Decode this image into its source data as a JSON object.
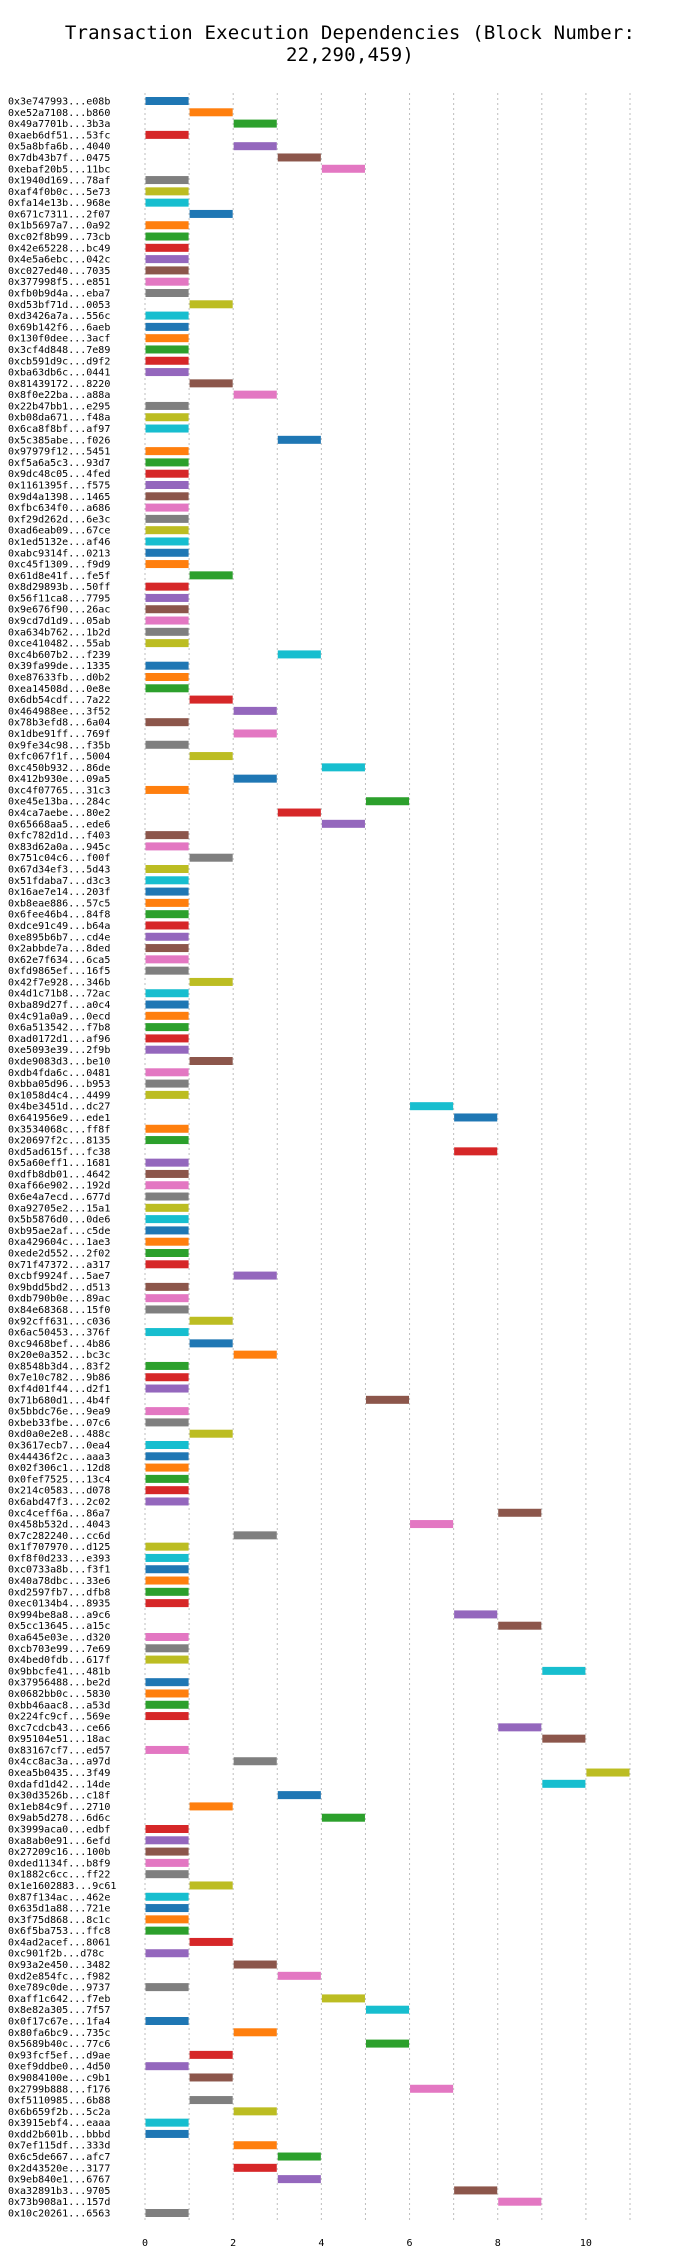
{
  "chart_data": {
    "type": "bar",
    "orientation": "horizontal-timeline",
    "title": "Transaction Execution Dependencies (Block Number: 22,290,459)",
    "xlabel": "",
    "ylabel": "",
    "xlim": [
      -0.5,
      11.5
    ],
    "xticks": [
      0,
      2,
      4,
      6,
      8,
      10
    ],
    "grid": "vertical-dotted",
    "colors": [
      "#1f77b4",
      "#ff7f0e",
      "#2ca02c",
      "#d62728",
      "#9467bd",
      "#8c564b",
      "#e377c2",
      "#7f7f7f",
      "#bcbd22",
      "#17becf"
    ],
    "transactions": [
      {
        "label": "0x3e747993...e08b",
        "start": 0,
        "end": 1
      },
      {
        "label": "0xe52a7108...b860",
        "start": 1,
        "end": 2
      },
      {
        "label": "0x49a7701b...3b3a",
        "start": 2,
        "end": 3
      },
      {
        "label": "0xaeb6df51...53fc",
        "start": 0,
        "end": 1
      },
      {
        "label": "0x5a8bfa6b...4040",
        "start": 2,
        "end": 3
      },
      {
        "label": "0x7db43b7f...0475",
        "start": 3,
        "end": 4
      },
      {
        "label": "0xebaf20b5...11bc",
        "start": 4,
        "end": 5
      },
      {
        "label": "0x1940d169...78af",
        "start": 0,
        "end": 1
      },
      {
        "label": "0xaf4f0b0c...5e73",
        "start": 0,
        "end": 1
      },
      {
        "label": "0xfa14e13b...968e",
        "start": 0,
        "end": 1
      },
      {
        "label": "0x671c7311...2f07",
        "start": 1,
        "end": 2
      },
      {
        "label": "0x1b5697a7...0a92",
        "start": 0,
        "end": 1
      },
      {
        "label": "0xc02f8b99...73cb",
        "start": 0,
        "end": 1
      },
      {
        "label": "0x42e65228...bc49",
        "start": 0,
        "end": 1
      },
      {
        "label": "0x4e5a6ebc...042c",
        "start": 0,
        "end": 1
      },
      {
        "label": "0xc027ed40...7035",
        "start": 0,
        "end": 1
      },
      {
        "label": "0x377998f5...e851",
        "start": 0,
        "end": 1
      },
      {
        "label": "0xfb0b9d4a...eba7",
        "start": 0,
        "end": 1
      },
      {
        "label": "0xd53bf71d...0053",
        "start": 1,
        "end": 2
      },
      {
        "label": "0xd3426a7a...556c",
        "start": 0,
        "end": 1
      },
      {
        "label": "0x69b142f6...6aeb",
        "start": 0,
        "end": 1
      },
      {
        "label": "0x130f0dee...3acf",
        "start": 0,
        "end": 1
      },
      {
        "label": "0x3cf4d848...7e89",
        "start": 0,
        "end": 1
      },
      {
        "label": "0xcb591d9c...d9f2",
        "start": 0,
        "end": 1
      },
      {
        "label": "0xba63db6c...0441",
        "start": 0,
        "end": 1
      },
      {
        "label": "0x81439172...8220",
        "start": 1,
        "end": 2
      },
      {
        "label": "0x8f0e22ba...a88a",
        "start": 2,
        "end": 3
      },
      {
        "label": "0x22b47bb1...e295",
        "start": 0,
        "end": 1
      },
      {
        "label": "0xb08da671...f48a",
        "start": 0,
        "end": 1
      },
      {
        "label": "0x6ca8f8bf...af97",
        "start": 0,
        "end": 1
      },
      {
        "label": "0x5c385abe...f026",
        "start": 3,
        "end": 4
      },
      {
        "label": "0x97979f12...5451",
        "start": 0,
        "end": 1
      },
      {
        "label": "0xf5a6a5c3...93d7",
        "start": 0,
        "end": 1
      },
      {
        "label": "0x9dc48c05...4fed",
        "start": 0,
        "end": 1
      },
      {
        "label": "0x1161395f...f575",
        "start": 0,
        "end": 1
      },
      {
        "label": "0x9d4a1398...1465",
        "start": 0,
        "end": 1
      },
      {
        "label": "0xfbc634f0...a686",
        "start": 0,
        "end": 1
      },
      {
        "label": "0xf29d262d...6e3c",
        "start": 0,
        "end": 1
      },
      {
        "label": "0xad6eab09...67ce",
        "start": 0,
        "end": 1
      },
      {
        "label": "0x1ed5132e...af46",
        "start": 0,
        "end": 1
      },
      {
        "label": "0xabc9314f...0213",
        "start": 0,
        "end": 1
      },
      {
        "label": "0xc45f1309...f9d9",
        "start": 0,
        "end": 1
      },
      {
        "label": "0x61d8e41f...fe5f",
        "start": 1,
        "end": 2
      },
      {
        "label": "0x8d29893b...50ff",
        "start": 0,
        "end": 1
      },
      {
        "label": "0x56f11ca8...7795",
        "start": 0,
        "end": 1
      },
      {
        "label": "0x9e676f90...26ac",
        "start": 0,
        "end": 1
      },
      {
        "label": "0x9cd7d1d9...05ab",
        "start": 0,
        "end": 1
      },
      {
        "label": "0xa634b762...1b2d",
        "start": 0,
        "end": 1
      },
      {
        "label": "0xce410482...55ab",
        "start": 0,
        "end": 1
      },
      {
        "label": "0xc4b607b2...f239",
        "start": 3,
        "end": 4
      },
      {
        "label": "0x39fa99de...1335",
        "start": 0,
        "end": 1
      },
      {
        "label": "0xe87633fb...d0b2",
        "start": 0,
        "end": 1
      },
      {
        "label": "0xea14508d...0e8e",
        "start": 0,
        "end": 1
      },
      {
        "label": "0x6db54cdf...7a22",
        "start": 1,
        "end": 2
      },
      {
        "label": "0x464988ee...3f52",
        "start": 2,
        "end": 3
      },
      {
        "label": "0x78b3efd8...6a04",
        "start": 0,
        "end": 1
      },
      {
        "label": "0x1dbe91ff...769f",
        "start": 2,
        "end": 3
      },
      {
        "label": "0x9fe34c98...f35b",
        "start": 0,
        "end": 1
      },
      {
        "label": "0xfc067f1f...5004",
        "start": 1,
        "end": 2
      },
      {
        "label": "0xc450b932...86de",
        "start": 4,
        "end": 5
      },
      {
        "label": "0x412b930e...09a5",
        "start": 2,
        "end": 3
      },
      {
        "label": "0xc4f07765...31c3",
        "start": 0,
        "end": 1
      },
      {
        "label": "0xe45e13ba...284c",
        "start": 5,
        "end": 6
      },
      {
        "label": "0x4ca7aebe...80e2",
        "start": 3,
        "end": 4
      },
      {
        "label": "0x65668aa5...ede6",
        "start": 4,
        "end": 5
      },
      {
        "label": "0xfc782d1d...f403",
        "start": 0,
        "end": 1
      },
      {
        "label": "0x83d62a0a...945c",
        "start": 0,
        "end": 1
      },
      {
        "label": "0x751c04c6...f00f",
        "start": 1,
        "end": 2
      },
      {
        "label": "0x67d34ef3...5d43",
        "start": 0,
        "end": 1
      },
      {
        "label": "0x51fdaba7...d3c3",
        "start": 0,
        "end": 1
      },
      {
        "label": "0x16ae7e14...203f",
        "start": 0,
        "end": 1
      },
      {
        "label": "0xb8eae886...57c5",
        "start": 0,
        "end": 1
      },
      {
        "label": "0x6fee46b4...84f8",
        "start": 0,
        "end": 1
      },
      {
        "label": "0xdce91c49...b64a",
        "start": 0,
        "end": 1
      },
      {
        "label": "0xe895b6b7...cd4e",
        "start": 0,
        "end": 1
      },
      {
        "label": "0x2abbde7a...8ded",
        "start": 0,
        "end": 1
      },
      {
        "label": "0x62e7f634...6ca5",
        "start": 0,
        "end": 1
      },
      {
        "label": "0xfd9865ef...16f5",
        "start": 0,
        "end": 1
      },
      {
        "label": "0x42f7e928...346b",
        "start": 1,
        "end": 2
      },
      {
        "label": "0x4d1c71b8...72ac",
        "start": 0,
        "end": 1
      },
      {
        "label": "0xba89d27f...a0c4",
        "start": 0,
        "end": 1
      },
      {
        "label": "0x4c91a0a9...0ecd",
        "start": 0,
        "end": 1
      },
      {
        "label": "0x6a513542...f7b8",
        "start": 0,
        "end": 1
      },
      {
        "label": "0xad0172d1...af96",
        "start": 0,
        "end": 1
      },
      {
        "label": "0xe5093e39...2f9b",
        "start": 0,
        "end": 1
      },
      {
        "label": "0xde9083d3...be10",
        "start": 1,
        "end": 2
      },
      {
        "label": "0xdb4fda6c...0481",
        "start": 0,
        "end": 1
      },
      {
        "label": "0xbba05d96...b953",
        "start": 0,
        "end": 1
      },
      {
        "label": "0x1058d4c4...4499",
        "start": 0,
        "end": 1
      },
      {
        "label": "0x4be3451d...dc27",
        "start": 6,
        "end": 7
      },
      {
        "label": "0x641956e9...ede1",
        "start": 7,
        "end": 8
      },
      {
        "label": "0x3534068c...ff8f",
        "start": 0,
        "end": 1
      },
      {
        "label": "0x20697f2c...8135",
        "start": 0,
        "end": 1
      },
      {
        "label": "0xd5ad615f...fc38",
        "start": 7,
        "end": 8
      },
      {
        "label": "0x5a60eff1...1681",
        "start": 0,
        "end": 1
      },
      {
        "label": "0xdfb8db01...4642",
        "start": 0,
        "end": 1
      },
      {
        "label": "0xaf66e902...192d",
        "start": 0,
        "end": 1
      },
      {
        "label": "0x6e4a7ecd...677d",
        "start": 0,
        "end": 1
      },
      {
        "label": "0xa92705e2...15a1",
        "start": 0,
        "end": 1
      },
      {
        "label": "0x5b5876d0...0de6",
        "start": 0,
        "end": 1
      },
      {
        "label": "0xb95ae2af...c5de",
        "start": 0,
        "end": 1
      },
      {
        "label": "0xa429604c...1ae3",
        "start": 0,
        "end": 1
      },
      {
        "label": "0xede2d552...2f02",
        "start": 0,
        "end": 1
      },
      {
        "label": "0x71f47372...a317",
        "start": 0,
        "end": 1
      },
      {
        "label": "0xcbf9924f...5ae7",
        "start": 2,
        "end": 3
      },
      {
        "label": "0x9bdd5bd2...d513",
        "start": 0,
        "end": 1
      },
      {
        "label": "0xdb790b0e...89ac",
        "start": 0,
        "end": 1
      },
      {
        "label": "0x84e68368...15f0",
        "start": 0,
        "end": 1
      },
      {
        "label": "0x92cff631...c036",
        "start": 1,
        "end": 2
      },
      {
        "label": "0x6ac50453...376f",
        "start": 0,
        "end": 1
      },
      {
        "label": "0xc9468bef...4b86",
        "start": 1,
        "end": 2
      },
      {
        "label": "0x20e0a352...bc3c",
        "start": 2,
        "end": 3
      },
      {
        "label": "0x8548b3d4...83f2",
        "start": 0,
        "end": 1
      },
      {
        "label": "0x7e10c782...9b86",
        "start": 0,
        "end": 1
      },
      {
        "label": "0xf4d01f44...d2f1",
        "start": 0,
        "end": 1
      },
      {
        "label": "0x71b680d1...4b4f",
        "start": 5,
        "end": 6
      },
      {
        "label": "0x5bbdc76e...9ea9",
        "start": 0,
        "end": 1
      },
      {
        "label": "0xbeb33fbe...07c6",
        "start": 0,
        "end": 1
      },
      {
        "label": "0xd0a0e2e8...488c",
        "start": 1,
        "end": 2
      },
      {
        "label": "0x3617ecb7...0ea4",
        "start": 0,
        "end": 1
      },
      {
        "label": "0x44436f2c...aaa3",
        "start": 0,
        "end": 1
      },
      {
        "label": "0x02f306c1...12d8",
        "start": 0,
        "end": 1
      },
      {
        "label": "0x0fef7525...13c4",
        "start": 0,
        "end": 1
      },
      {
        "label": "0x214c0583...d078",
        "start": 0,
        "end": 1
      },
      {
        "label": "0x6abd47f3...2c02",
        "start": 0,
        "end": 1
      },
      {
        "label": "0xc4ceff6a...86a7",
        "start": 8,
        "end": 9
      },
      {
        "label": "0x458b532d...4043",
        "start": 6,
        "end": 7
      },
      {
        "label": "0x7c282240...cc6d",
        "start": 2,
        "end": 3
      },
      {
        "label": "0x1f707970...d125",
        "start": 0,
        "end": 1
      },
      {
        "label": "0xf8f0d233...e393",
        "start": 0,
        "end": 1
      },
      {
        "label": "0xc0733a8b...f3f1",
        "start": 0,
        "end": 1
      },
      {
        "label": "0x40a78dbc...33e6",
        "start": 0,
        "end": 1
      },
      {
        "label": "0xd2597fb7...dfb8",
        "start": 0,
        "end": 1
      },
      {
        "label": "0xec0134b4...8935",
        "start": 0,
        "end": 1
      },
      {
        "label": "0x994be8a8...a9c6",
        "start": 7,
        "end": 8
      },
      {
        "label": "0x5cc13645...a15c",
        "start": 8,
        "end": 9
      },
      {
        "label": "0xa645e03e...d320",
        "start": 0,
        "end": 1
      },
      {
        "label": "0xcb703e99...7e69",
        "start": 0,
        "end": 1
      },
      {
        "label": "0x4bed0fdb...617f",
        "start": 0,
        "end": 1
      },
      {
        "label": "0x9bbcfe41...481b",
        "start": 9,
        "end": 10
      },
      {
        "label": "0x37956488...be2d",
        "start": 0,
        "end": 1
      },
      {
        "label": "0x0682bb0c...5830",
        "start": 0,
        "end": 1
      },
      {
        "label": "0xbb46aac8...a53d",
        "start": 0,
        "end": 1
      },
      {
        "label": "0x224fc9cf...569e",
        "start": 0,
        "end": 1
      },
      {
        "label": "0xc7cdcb43...ce66",
        "start": 8,
        "end": 9
      },
      {
        "label": "0x95104e51...18ac",
        "start": 9,
        "end": 10
      },
      {
        "label": "0x83167cf7...ed57",
        "start": 0,
        "end": 1
      },
      {
        "label": "0x4cc8ac3a...a97d",
        "start": 2,
        "end": 3
      },
      {
        "label": "0xea5b0435...3f49",
        "start": 10,
        "end": 11
      },
      {
        "label": "0xdafd1d42...14de",
        "start": 9,
        "end": 10
      },
      {
        "label": "0x30d3526b...c18f",
        "start": 3,
        "end": 4
      },
      {
        "label": "0x1eb84c9f...2710",
        "start": 1,
        "end": 2
      },
      {
        "label": "0x9ab5d278...6d6c",
        "start": 4,
        "end": 5
      },
      {
        "label": "0x3999aca0...edbf",
        "start": 0,
        "end": 1
      },
      {
        "label": "0xa8ab0e91...6efd",
        "start": 0,
        "end": 1
      },
      {
        "label": "0x27209c16...100b",
        "start": 0,
        "end": 1
      },
      {
        "label": "0xded1134f...b8f9",
        "start": 0,
        "end": 1
      },
      {
        "label": "0x1882c6cc...ff22",
        "start": 0,
        "end": 1
      },
      {
        "label": "0x1e1602883...9c61",
        "start": 1,
        "end": 2
      },
      {
        "label": "0x87f134ac...462e",
        "start": 0,
        "end": 1
      },
      {
        "label": "0x635d1a88...721e",
        "start": 0,
        "end": 1
      },
      {
        "label": "0x3f75d868...8c1c",
        "start": 0,
        "end": 1
      },
      {
        "label": "0x6f5ba753...ffc8",
        "start": 0,
        "end": 1
      },
      {
        "label": "0x4ad2acef...8061",
        "start": 1,
        "end": 2
      },
      {
        "label": "0xc901f2b...d78c",
        "start": 0,
        "end": 1
      },
      {
        "label": "0x93a2e450...3482",
        "start": 2,
        "end": 3
      },
      {
        "label": "0xd2e854fc...f982",
        "start": 3,
        "end": 4
      },
      {
        "label": "0xe789c0de...9737",
        "start": 0,
        "end": 1
      },
      {
        "label": "0xaff1c642...f7eb",
        "start": 4,
        "end": 5
      },
      {
        "label": "0x8e82a305...7f57",
        "start": 5,
        "end": 6
      },
      {
        "label": "0x0f17c67e...1fa4",
        "start": 0,
        "end": 1
      },
      {
        "label": "0x80fa6bc9...735c",
        "start": 2,
        "end": 3
      },
      {
        "label": "0x5689b40c...77c6",
        "start": 5,
        "end": 6
      },
      {
        "label": "0x93fcf5ef...d9ae",
        "start": 1,
        "end": 2
      },
      {
        "label": "0xef9ddbe0...4d50",
        "start": 0,
        "end": 1
      },
      {
        "label": "0x9084100e...c9b1",
        "start": 1,
        "end": 2
      },
      {
        "label": "0x2799b888...f176",
        "start": 6,
        "end": 7
      },
      {
        "label": "0xf5110985...6b88",
        "start": 1,
        "end": 2
      },
      {
        "label": "0x6b659f2b...5c2a",
        "start": 2,
        "end": 3
      },
      {
        "label": "0x3915ebf4...eaaa",
        "start": 0,
        "end": 1
      },
      {
        "label": "0xdd2b601b...bbbd",
        "start": 0,
        "end": 1
      },
      {
        "label": "0x7ef115df...333d",
        "start": 2,
        "end": 3
      },
      {
        "label": "0x6c5de667...afc7",
        "start": 3,
        "end": 4
      },
      {
        "label": "0x2d43520e...3177",
        "start": 2,
        "end": 3
      },
      {
        "label": "0x9eb840e1...6767",
        "start": 3,
        "end": 4
      },
      {
        "label": "0xa32891b3...9705",
        "start": 7,
        "end": 8
      },
      {
        "label": "0x73b908a1...157d",
        "start": 8,
        "end": 9
      },
      {
        "label": "0x10c20261...6563",
        "start": 0,
        "end": 1
      }
    ]
  }
}
